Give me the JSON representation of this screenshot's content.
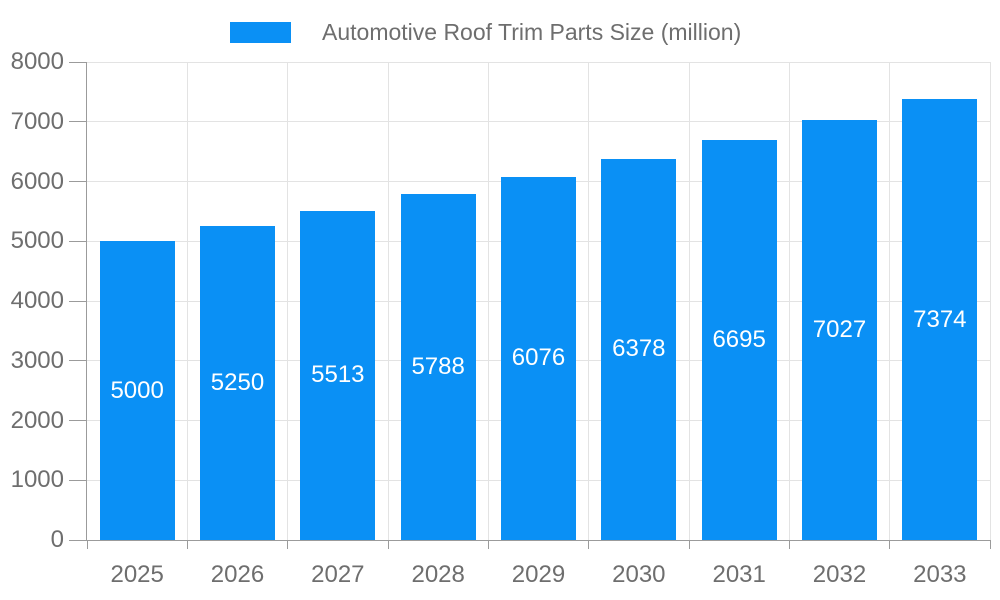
{
  "legend": {
    "label": "Automotive Roof Trim Parts Size (million)"
  },
  "chart_data": {
    "type": "bar",
    "title": "Automotive Roof Trim Parts Size (million)",
    "categories": [
      "2025",
      "2026",
      "2027",
      "2028",
      "2029",
      "2030",
      "2031",
      "2032",
      "2033"
    ],
    "series": [
      {
        "name": "Automotive Roof Trim Parts Size (million)",
        "values": [
          5000,
          5250,
          5513,
          5788,
          6076,
          6378,
          6695,
          7027,
          7374
        ]
      }
    ],
    "xlabel": "",
    "ylabel": "",
    "ylim": [
      0,
      8000
    ],
    "yticks": [
      0,
      1000,
      2000,
      3000,
      4000,
      5000,
      6000,
      7000,
      8000
    ],
    "grid": "both",
    "legend_position": "top-center",
    "bar_label_position": "inside-middle",
    "colors": {
      "bar": "#0a90f5",
      "axis_line": "#9b9b9b",
      "grid_line": "#e3e3e3",
      "tick_text": "#6e6e6e",
      "bar_label_text": "#ffffff",
      "background": "#ffffff"
    }
  }
}
